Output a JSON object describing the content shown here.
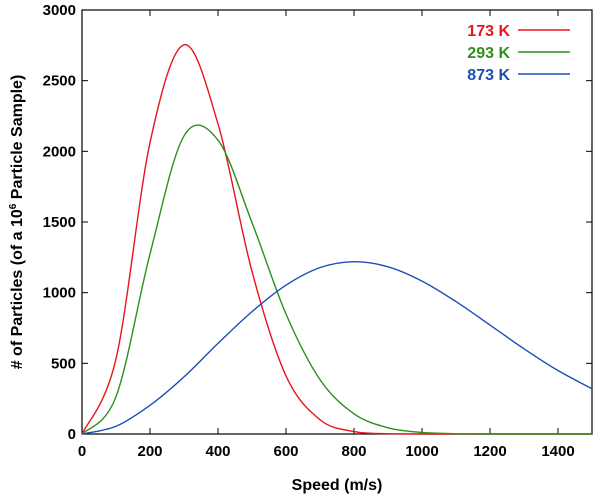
{
  "chart_data": {
    "type": "line",
    "xlabel": "Speed (m/s)",
    "ylabel_parts": [
      "# of Particles (of a 10",
      "6",
      " Particle Sample)"
    ],
    "xlim": [
      0,
      1500
    ],
    "ylim": [
      0,
      3000
    ],
    "x_ticks": [
      0,
      200,
      400,
      600,
      800,
      1000,
      1200,
      1400
    ],
    "y_ticks": [
      0,
      500,
      1000,
      1500,
      2000,
      2500,
      3000
    ],
    "grid": false,
    "legend_position": "top-right",
    "x": [
      0,
      100,
      200,
      300,
      400,
      500,
      600,
      700,
      800,
      900,
      1000,
      1100,
      1200,
      1300,
      1400,
      1500
    ],
    "series": [
      {
        "name": "173 K",
        "color": "#e8141b",
        "values": [
          0,
          532,
          2061,
          2754,
          2194,
          1150,
          411,
          101,
          17,
          2,
          0,
          0,
          0,
          0,
          0,
          0
        ]
      },
      {
        "name": "293 K",
        "color": "#2f8f1b",
        "values": [
          0,
          264,
          1274,
          2109,
          2079,
          1496,
          849,
          385,
          143,
          44,
          11,
          2,
          0,
          0,
          0,
          0
        ]
      },
      {
        "name": "873 K",
        "color": "#1a4fb5",
        "values": [
          0,
          55,
          203,
          404,
          641,
          866,
          1053,
          1177,
          1219,
          1183,
          1082,
          937,
          771,
          603,
          449,
          320
        ]
      }
    ]
  }
}
